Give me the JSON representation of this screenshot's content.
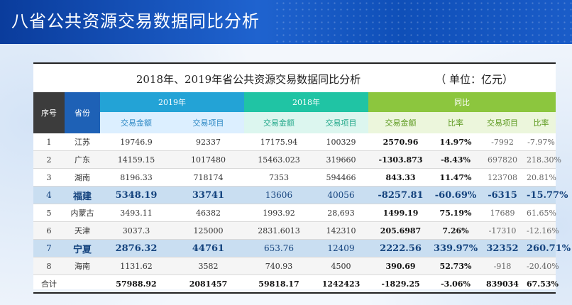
{
  "page": {
    "title": "八省公共资源交易数据同比分析"
  },
  "table": {
    "title": "2018年、2019年省公共资源交易数据同比分析",
    "unit": "（ 单位：亿元）",
    "headers": {
      "id": "序号",
      "province": "省份",
      "group_2019": "2019年",
      "group_2018": "2018年",
      "group_cmp": "同比",
      "amount": "交易金额",
      "projects": "交易项目",
      "ratio": "比率"
    },
    "rows": [
      {
        "id": "1",
        "province": "江苏",
        "amt2019": "19746.9",
        "proj2019": "92337",
        "amt2018": "17175.94",
        "proj2018": "100329",
        "amtDiff": "2570.96",
        "amtRatio": "14.97%",
        "projDiff": "-7992",
        "projRatio": "-7.97%"
      },
      {
        "id": "2",
        "province": "广东",
        "amt2019": "14159.15",
        "proj2019": "1017480",
        "amt2018": "15463.023",
        "proj2018": "319660",
        "amtDiff": "-1303.873",
        "amtRatio": "-8.43%",
        "projDiff": "697820",
        "projRatio": "218.30%"
      },
      {
        "id": "3",
        "province": "湖南",
        "amt2019": "8196.33",
        "proj2019": "718174",
        "amt2018": "7353",
        "proj2018": "594466",
        "amtDiff": "843.33",
        "amtRatio": "11.47%",
        "projDiff": "123708",
        "projRatio": "20.81%"
      },
      {
        "id": "4",
        "province": "福建",
        "amt2019": "5348.19",
        "proj2019": "33741",
        "amt2018": "13606",
        "proj2018": "40056",
        "amtDiff": "-8257.81",
        "amtRatio": "-60.69%",
        "projDiff": "-6315",
        "projRatio": "-15.77%"
      },
      {
        "id": "5",
        "province": "内蒙古",
        "amt2019": "3493.11",
        "proj2019": "46382",
        "amt2018": "1993.92",
        "proj2018": "28,693",
        "amtDiff": "1499.19",
        "amtRatio": "75.19%",
        "projDiff": "17689",
        "projRatio": "61.65%"
      },
      {
        "id": "6",
        "province": "天津",
        "amt2019": "3037.3",
        "proj2019": "125000",
        "amt2018": "2831.6013",
        "proj2018": "142310",
        "amtDiff": "205.6987",
        "amtRatio": "7.26%",
        "projDiff": "-17310",
        "projRatio": "-12.16%"
      },
      {
        "id": "7",
        "province": "宁夏",
        "amt2019": "2876.32",
        "proj2019": "44761",
        "amt2018": "653.76",
        "proj2018": "12409",
        "amtDiff": "2222.56",
        "amtRatio": "339.97%",
        "projDiff": "32352",
        "projRatio": "260.71%"
      },
      {
        "id": "8",
        "province": "海南",
        "amt2019": "1131.62",
        "proj2019": "3582",
        "amt2018": "740.93",
        "proj2018": "4500",
        "amtDiff": "390.69",
        "amtRatio": "52.73%",
        "projDiff": "-918",
        "projRatio": "-20.40%"
      }
    ],
    "total": {
      "label": "合计",
      "amt2019": "57988.92",
      "proj2019": "2081457",
      "amt2018": "59818.17",
      "proj2018": "1242423",
      "amtDiff": "-1829.25",
      "amtRatio": "-3.06%",
      "projDiff": "839034",
      "projRatio": "67.53%"
    }
  },
  "colors": {
    "banner": "#1f63cf",
    "group_2019": "#23a3d6",
    "group_2018": "#20c4a4",
    "group_cmp": "#8cc63e",
    "highlight_row": "#c9def1"
  }
}
